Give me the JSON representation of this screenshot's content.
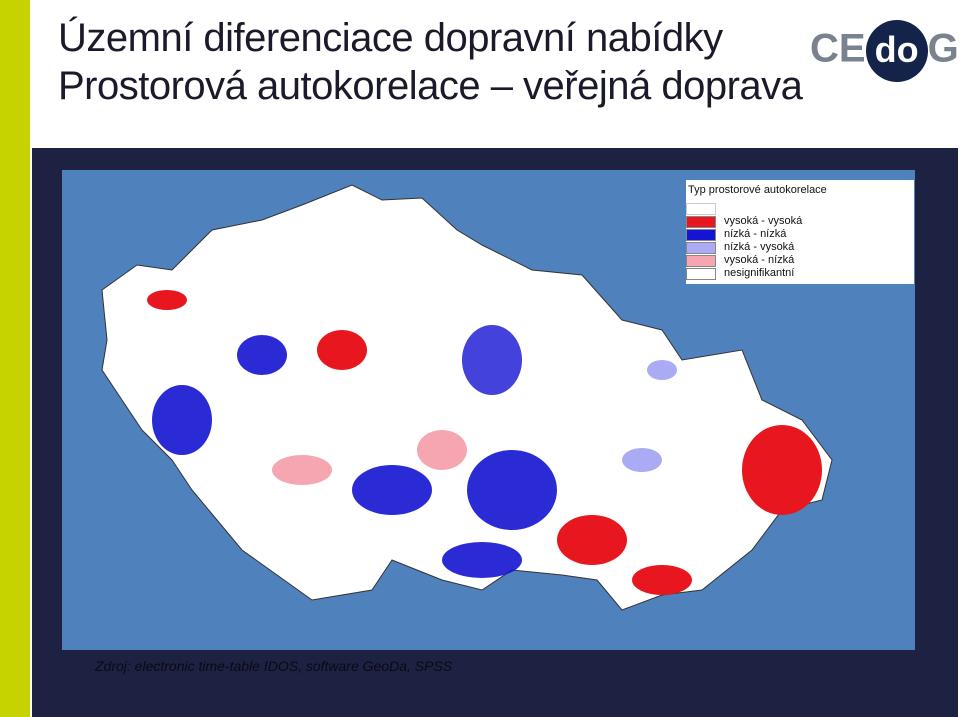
{
  "header": {
    "title_lines": [
      "Územní diferenciace dopravní nabídky",
      "Prostorová autokorelace – veřejná doprava"
    ],
    "logo": [
      "CE",
      "do",
      "G"
    ]
  },
  "map": {
    "legend": {
      "title": "Typ prostorové autokorelace",
      "items": [
        {
          "label": "vysoká - vysoká",
          "color": "#e8161e"
        },
        {
          "label": "nízká - nízká",
          "color": "#1414d2"
        },
        {
          "label": "nízká - vysoká",
          "color": "#aaaaf5"
        },
        {
          "label": "vysoká - nízká",
          "color": "#f5a6b0"
        },
        {
          "label": "nesignifikantní",
          "color": "#ffffff"
        }
      ]
    }
  },
  "source": "Zdroj: electronic time-table IDOS, software GeoDa, SPSS"
}
